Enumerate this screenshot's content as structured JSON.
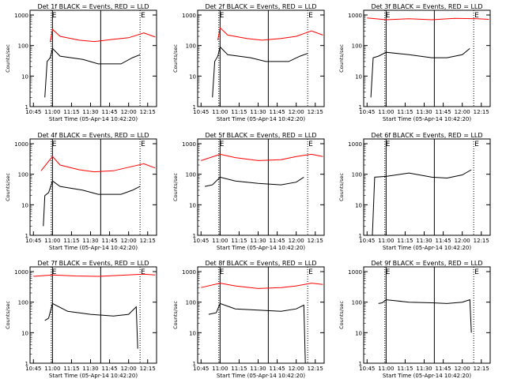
{
  "chart_data": [
    {
      "type": "line",
      "title": "Det 1f BLACK = Events, RED = LLD",
      "xlabel": "Start Time (05-Apr-14 10:42:20)",
      "ylabel": "Counts/sec",
      "y_scale": "log",
      "ylim": [
        1,
        1000
      ],
      "xticks": [
        "10:45",
        "11:00",
        "11:15",
        "11:30",
        "11:45",
        "12:00",
        "12:15"
      ],
      "yticks": [
        "1",
        "10",
        "100",
        "1000"
      ],
      "solid_markers": [
        "11:00",
        "11:38"
      ],
      "dotted_markers": [
        "10:59",
        "12:09"
      ],
      "marker_labels": [
        "E",
        "E"
      ],
      "series": [
        {
          "color": "#ff0000",
          "values": [
            [
              10.97,
              130
            ],
            [
              11.0,
              340
            ],
            [
              11.1,
              200
            ],
            [
              11.35,
              150
            ],
            [
              11.55,
              135
            ],
            [
              11.8,
              160
            ],
            [
              12.0,
              180
            ],
            [
              12.2,
              260
            ],
            [
              12.35,
              190
            ]
          ]
        },
        {
          "color": "#000000",
          "values": [
            [
              10.9,
              2
            ],
            [
              10.93,
              30
            ],
            [
              10.97,
              40
            ],
            [
              11.0,
              80
            ],
            [
              11.1,
              45
            ],
            [
              11.4,
              35
            ],
            [
              11.6,
              25
            ],
            [
              11.9,
              25
            ],
            [
              12.05,
              40
            ],
            [
              12.15,
              50
            ]
          ]
        }
      ]
    },
    {
      "type": "line",
      "title": "Det 2f BLACK = Events, RED = LLD",
      "xlabel": "Start Time (05-Apr-14 10:42:20)",
      "ylabel": "Counts/sec",
      "y_scale": "log",
      "ylim": [
        1,
        1000
      ],
      "xticks": [
        "10:45",
        "11:00",
        "11:15",
        "11:30",
        "11:45",
        "12:00",
        "12:15"
      ],
      "yticks": [
        "1",
        "10",
        "100",
        "1000"
      ],
      "solid_markers": [
        "11:00",
        "11:38"
      ],
      "dotted_markers": [
        "10:59",
        "12:09"
      ],
      "marker_labels": [
        "E",
        "E"
      ],
      "series": [
        {
          "color": "#ff0000",
          "values": [
            [
              10.97,
              150
            ],
            [
              11.0,
              380
            ],
            [
              11.1,
              220
            ],
            [
              11.35,
              170
            ],
            [
              11.55,
              150
            ],
            [
              11.8,
              170
            ],
            [
              12.0,
              200
            ],
            [
              12.2,
              300
            ],
            [
              12.35,
              220
            ]
          ]
        },
        {
          "color": "#000000",
          "values": [
            [
              10.9,
              2
            ],
            [
              10.93,
              30
            ],
            [
              10.97,
              45
            ],
            [
              11.0,
              90
            ],
            [
              11.1,
              50
            ],
            [
              11.4,
              40
            ],
            [
              11.6,
              30
            ],
            [
              11.9,
              30
            ],
            [
              12.05,
              45
            ],
            [
              12.15,
              55
            ]
          ]
        }
      ]
    },
    {
      "type": "line",
      "title": "Det 3f BLACK = Events, RED = LLD",
      "xlabel": "Start Time (05-Apr-14 10:42:20)",
      "ylabel": "Counts/sec",
      "y_scale": "log",
      "ylim": [
        1,
        1000
      ],
      "xticks": [
        "10:45",
        "11:00",
        "11:15",
        "11:30",
        "11:45",
        "12:00",
        "12:15"
      ],
      "yticks": [
        "1",
        "10",
        "100",
        "1000"
      ],
      "solid_markers": [
        "11:00",
        "11:38"
      ],
      "dotted_markers": [
        "10:59",
        "12:09"
      ],
      "marker_labels": [
        "E",
        "E"
      ],
      "series": [
        {
          "color": "#ff0000",
          "values": [
            [
              10.75,
              800
            ],
            [
              11.0,
              700
            ],
            [
              11.3,
              750
            ],
            [
              11.6,
              700
            ],
            [
              11.9,
              780
            ],
            [
              12.2,
              750
            ],
            [
              12.35,
              720
            ]
          ]
        },
        {
          "color": "#000000",
          "values": [
            [
              10.8,
              2
            ],
            [
              10.83,
              40
            ],
            [
              10.9,
              45
            ],
            [
              11.0,
              60
            ],
            [
              11.3,
              50
            ],
            [
              11.6,
              40
            ],
            [
              11.8,
              40
            ],
            [
              12.0,
              50
            ],
            [
              12.1,
              80
            ]
          ]
        }
      ]
    },
    {
      "type": "line",
      "title": "Det 4f BLACK = Events, RED = LLD",
      "xlabel": "Start Time (05-Apr-14 10:42:20)",
      "ylabel": "Counts/sec",
      "y_scale": "log",
      "ylim": [
        1,
        1000
      ],
      "xticks": [
        "10:45",
        "11:00",
        "11:15",
        "11:30",
        "11:45",
        "12:00",
        "12:15"
      ],
      "yticks": [
        "1",
        "10",
        "100",
        "1000"
      ],
      "solid_markers": [
        "11:00",
        "11:38"
      ],
      "dotted_markers": [
        "10:59",
        "12:09"
      ],
      "marker_labels": [
        "E",
        "E"
      ],
      "series": [
        {
          "color": "#ff0000",
          "values": [
            [
              10.85,
              130
            ],
            [
              11.0,
              380
            ],
            [
              11.1,
              200
            ],
            [
              11.35,
              140
            ],
            [
              11.55,
              120
            ],
            [
              11.8,
              130
            ],
            [
              12.0,
              170
            ],
            [
              12.2,
              220
            ],
            [
              12.35,
              160
            ]
          ]
        },
        {
          "color": "#000000",
          "values": [
            [
              10.88,
              2
            ],
            [
              10.9,
              20
            ],
            [
              10.95,
              25
            ],
            [
              11.0,
              60
            ],
            [
              11.1,
              40
            ],
            [
              11.4,
              30
            ],
            [
              11.6,
              22
            ],
            [
              11.9,
              22
            ],
            [
              12.05,
              30
            ],
            [
              12.15,
              40
            ]
          ]
        }
      ]
    },
    {
      "type": "line",
      "title": "Det 5f BLACK = Events, RED = LLD",
      "xlabel": "Start Time (05-Apr-14 10:42:20)",
      "ylabel": "Counts/sec",
      "y_scale": "log",
      "ylim": [
        1,
        1000
      ],
      "xticks": [
        "10:45",
        "11:00",
        "11:15",
        "11:30",
        "11:45",
        "12:00",
        "12:15"
      ],
      "yticks": [
        "1",
        "10",
        "100",
        "1000"
      ],
      "solid_markers": [
        "11:00",
        "11:38"
      ],
      "dotted_markers": [
        "10:59",
        "12:09"
      ],
      "marker_labels": [
        "E",
        "E"
      ],
      "series": [
        {
          "color": "#ff0000",
          "values": [
            [
              10.75,
              280
            ],
            [
              11.0,
              450
            ],
            [
              11.2,
              350
            ],
            [
              11.5,
              280
            ],
            [
              11.8,
              300
            ],
            [
              12.0,
              380
            ],
            [
              12.2,
              450
            ],
            [
              12.35,
              380
            ]
          ]
        },
        {
          "color": "#000000",
          "values": [
            [
              10.8,
              40
            ],
            [
              10.9,
              45
            ],
            [
              11.0,
              80
            ],
            [
              11.2,
              60
            ],
            [
              11.5,
              50
            ],
            [
              11.8,
              45
            ],
            [
              12.0,
              55
            ],
            [
              12.1,
              80
            ]
          ]
        }
      ]
    },
    {
      "type": "line",
      "title": "Det 6f BLACK = Events, RED = LLD",
      "xlabel": "Start Time (05-Apr-14 10:42:20)",
      "ylabel": "Counts/sec",
      "y_scale": "log",
      "ylim": [
        1,
        1000
      ],
      "xticks": [
        "10:45",
        "11:00",
        "11:15",
        "11:30",
        "11:45",
        "12:00",
        "12:15"
      ],
      "yticks": [
        "1",
        "10",
        "100",
        "1000"
      ],
      "solid_markers": [
        "11:00",
        "11:38"
      ],
      "dotted_markers": [
        "10:59",
        "12:09"
      ],
      "marker_labels": [
        "E",
        "E"
      ],
      "series": [
        {
          "color": "#000000",
          "values": [
            [
              10.82,
              1
            ],
            [
              10.85,
              80
            ],
            [
              11.0,
              85
            ],
            [
              11.3,
              110
            ],
            [
              11.6,
              80
            ],
            [
              11.8,
              75
            ],
            [
              12.0,
              95
            ],
            [
              12.12,
              140
            ]
          ]
        }
      ]
    },
    {
      "type": "line",
      "title": "Det 7f BLACK = Events, RED = LLD",
      "xlabel": "Start Time (05-Apr-14 10:42:20)",
      "ylabel": "Counts/sec",
      "y_scale": "log",
      "ylim": [
        1,
        1000
      ],
      "xticks": [
        "10:45",
        "11:00",
        "11:15",
        "11:30",
        "11:45",
        "12:00",
        "12:15"
      ],
      "yticks": [
        "1",
        "10",
        "100",
        "1000"
      ],
      "solid_markers": [
        "11:00",
        "11:38"
      ],
      "dotted_markers": [
        "10:59",
        "12:09"
      ],
      "marker_labels": [
        "E",
        "E"
      ],
      "series": [
        {
          "color": "#ff0000",
          "values": [
            [
              10.75,
              700
            ],
            [
              11.0,
              780
            ],
            [
              11.3,
              720
            ],
            [
              11.6,
              700
            ],
            [
              11.9,
              760
            ],
            [
              12.2,
              820
            ],
            [
              12.35,
              780
            ]
          ]
        },
        {
          "color": "#000000",
          "values": [
            [
              10.9,
              25
            ],
            [
              10.95,
              30
            ],
            [
              11.0,
              90
            ],
            [
              11.2,
              50
            ],
            [
              11.5,
              40
            ],
            [
              11.8,
              35
            ],
            [
              12.0,
              40
            ],
            [
              12.1,
              70
            ],
            [
              12.12,
              3
            ]
          ]
        }
      ]
    },
    {
      "type": "line",
      "title": "Det 8f BLACK = Events, RED = LLD",
      "xlabel": "Start Time (05-Apr-14 10:42:20)",
      "ylabel": "Counts/sec",
      "y_scale": "log",
      "ylim": [
        1,
        1000
      ],
      "xticks": [
        "10:45",
        "11:00",
        "11:15",
        "11:30",
        "11:45",
        "12:00",
        "12:15"
      ],
      "yticks": [
        "1",
        "10",
        "100",
        "1000"
      ],
      "solid_markers": [
        "11:00",
        "11:38"
      ],
      "dotted_markers": [
        "10:59",
        "12:09"
      ],
      "marker_labels": [
        "E",
        "E"
      ],
      "series": [
        {
          "color": "#ff0000",
          "values": [
            [
              10.75,
              300
            ],
            [
              11.0,
              420
            ],
            [
              11.2,
              340
            ],
            [
              11.5,
              280
            ],
            [
              11.8,
              300
            ],
            [
              12.0,
              340
            ],
            [
              12.2,
              420
            ],
            [
              12.35,
              380
            ]
          ]
        },
        {
          "color": "#000000",
          "values": [
            [
              10.85,
              40
            ],
            [
              10.95,
              45
            ],
            [
              11.0,
              90
            ],
            [
              11.2,
              60
            ],
            [
              11.5,
              55
            ],
            [
              11.8,
              50
            ],
            [
              12.0,
              60
            ],
            [
              12.1,
              80
            ],
            [
              12.12,
              1
            ]
          ]
        }
      ]
    },
    {
      "type": "line",
      "title": "Det 9f BLACK = Events, RED = LLD",
      "xlabel": "Start Time (05-Apr-14 10:42:20)",
      "ylabel": "Counts/sec",
      "y_scale": "log",
      "ylim": [
        1,
        1000
      ],
      "xticks": [
        "10:45",
        "11:00",
        "11:15",
        "11:30",
        "11:45",
        "12:00",
        "12:15"
      ],
      "yticks": [
        "1",
        "10",
        "100",
        "1000"
      ],
      "solid_markers": [
        "11:00",
        "11:38"
      ],
      "dotted_markers": [
        "10:59",
        "12:09"
      ],
      "marker_labels": [
        "E",
        "E"
      ],
      "series": [
        {
          "color": "#000000",
          "values": [
            [
              10.9,
              90
            ],
            [
              10.95,
              95
            ],
            [
              11.0,
              120
            ],
            [
              11.3,
              100
            ],
            [
              11.6,
              95
            ],
            [
              11.8,
              90
            ],
            [
              12.0,
              100
            ],
            [
              12.1,
              120
            ],
            [
              12.12,
              10
            ]
          ]
        }
      ]
    }
  ]
}
